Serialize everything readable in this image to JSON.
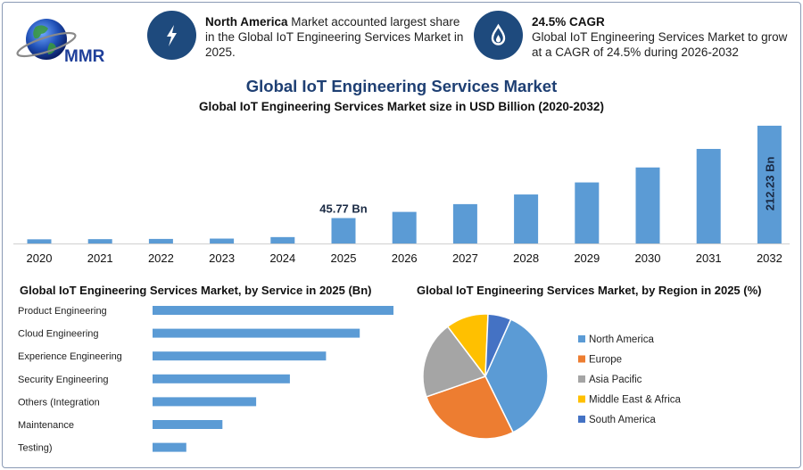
{
  "brand": {
    "logo_text": "MMR"
  },
  "info_cards": [
    {
      "icon": "lightning-icon",
      "bold": "North America",
      "text": " Market accounted largest share in the Global IoT Engineering Services Market in 2025."
    },
    {
      "icon": "flame-drop-icon",
      "bold": "24.5% CAGR",
      "text": "Global IoT Engineering Services Market to grow at a CAGR of 24.5% during 2026-2032"
    }
  ],
  "main_title": "Global IoT Engineering Services Market",
  "colors": {
    "bar": "#5b9bd5",
    "navy": "#1e4a7d",
    "title": "#1e3f73"
  },
  "chart_data": [
    {
      "type": "bar",
      "title": "Global IoT Engineering Services Market size in USD Billion (2020-2032)",
      "categories": [
        "2020",
        "2021",
        "2022",
        "2023",
        "2024",
        "2025",
        "2026",
        "2027",
        "2028",
        "2029",
        "2030",
        "2031",
        "2032"
      ],
      "values": [
        7.5,
        7.8,
        8.2,
        8.8,
        11.5,
        45.77,
        56.9,
        70.9,
        88.3,
        110.0,
        137.0,
        170.4,
        212.23
      ],
      "ylim": [
        0,
        230
      ],
      "annotations": [
        {
          "category": "2025",
          "label": "45.77 Bn"
        },
        {
          "category": "2032",
          "label": "212.23 Bn"
        }
      ]
    },
    {
      "type": "bar",
      "orientation": "horizontal",
      "title": "Global IoT Engineering Services Market, by Service in 2025 (Bn)",
      "categories": [
        "Product Engineering",
        "Cloud Engineering",
        "Experience Engineering",
        "Security Engineering",
        "Others (Integration",
        "Maintenance",
        "Testing)"
      ],
      "values": [
        100,
        86,
        72,
        57,
        43,
        29,
        14
      ],
      "xlim": [
        0,
        100
      ]
    },
    {
      "type": "pie",
      "title": "Global IoT Engineering Services Market, by Region in 2025 (%)",
      "labels": [
        "North America",
        "Europe",
        "Asia Pacific",
        "Middle East & Africa",
        "South America"
      ],
      "values": [
        36,
        27,
        20,
        11,
        6
      ],
      "colors": [
        "#5b9bd5",
        "#ed7d31",
        "#a5a5a5",
        "#ffc000",
        "#4472c4"
      ],
      "legend": "right"
    }
  ]
}
